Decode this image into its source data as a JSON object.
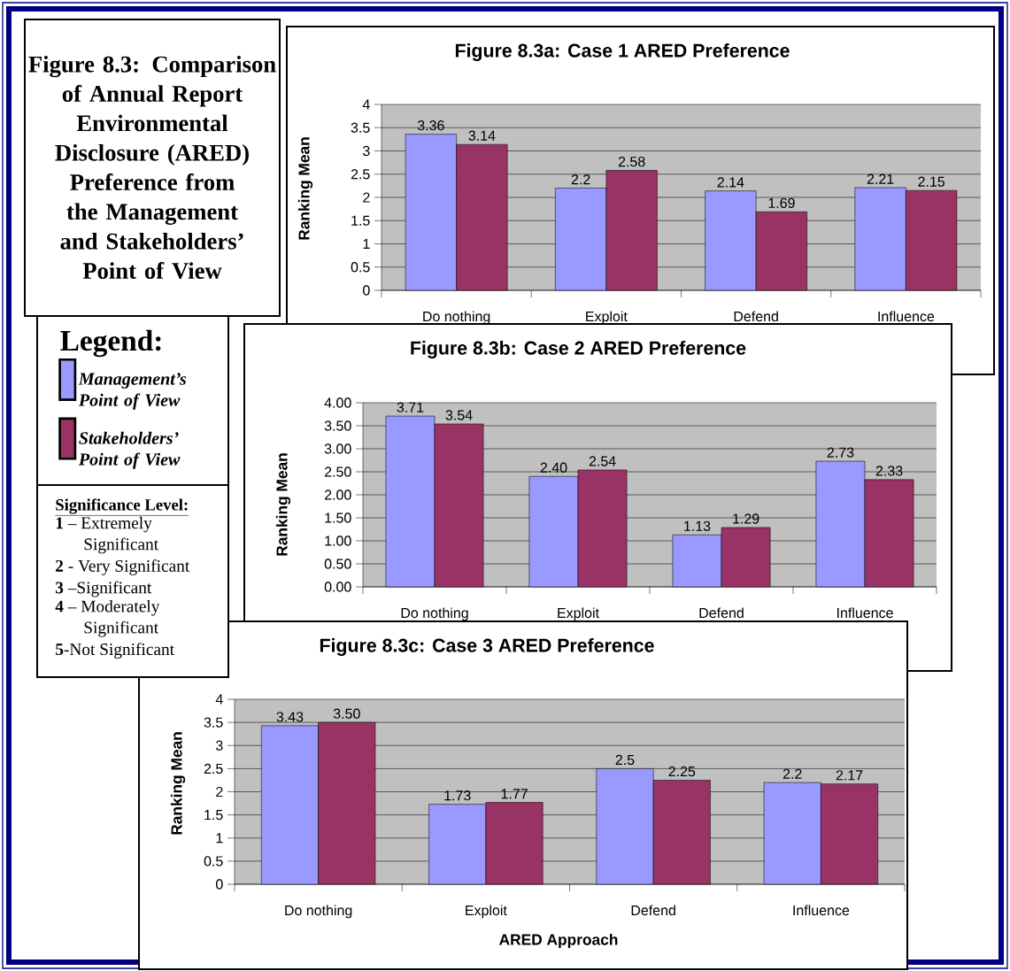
{
  "chart_data": [
    {
      "type": "other",
      "title": "Figure 8.3: Comparison of Annual Report Environmental Disclosure (ARED) Preference from the Management and Stakeholders’ Point of View",
      "subtitle": "Significance Level:",
      "annotations": [
        "**1** – Extremely Significant",
        "**2** - Very Significant",
        "**3** –Significant",
        "**4** – Moderately Significant",
        "**5**-Not Significant"
      ]
    },
    {
      "type": "bar",
      "title": "Figure 8.3a: Case 1 ARED Preference",
      "ylabel": "Ranking Mean",
      "legend_title": "Legend:",
      "legend": "left",
      "grid": "y",
      "data_labels": true,
      "categories": [
        "Do nothing",
        "Exploit",
        "Defend",
        "Influence"
      ],
      "ylim": [
        0,
        4
      ],
      "yticks": [
        0,
        0.5,
        1,
        1.5,
        2,
        2.5,
        3,
        3.5,
        4
      ],
      "series": [
        {
          "name": "Management’s Point of View",
          "color": "#9999ff",
          "values": [
            3.36,
            2.2,
            2.14,
            2.21
          ]
        },
        {
          "name": "Stakeholders’ Point of View",
          "color": "#993366",
          "values": [
            3.14,
            2.58,
            1.69,
            2.15
          ]
        }
      ]
    },
    {
      "type": "bar",
      "title": "Figure 8.3b: Case 2 ARED Preference",
      "ylabel": "Ranking Mean",
      "grid": "y",
      "categories": [
        "Do nothing",
        "Exploit",
        "Defend",
        "Influence"
      ],
      "ylim": [
        0,
        4
      ],
      "yticks": [
        {
          "value": 0,
          "label": "0.00"
        },
        {
          "value": 0.5,
          "label": "0.50"
        },
        {
          "value": 1,
          "label": "1.00"
        },
        {
          "value": 1.5,
          "label": "1.50"
        },
        {
          "value": 2,
          "label": "2.00"
        },
        {
          "value": 2.5,
          "label": "2.50"
        },
        {
          "value": 3,
          "label": "3.00"
        },
        {
          "value": 3.5,
          "label": "3.50"
        },
        {
          "value": 4,
          "label": "4.00"
        }
      ],
      "series": [
        {
          "color": "#9999ff",
          "values": [
            3.71,
            2.4,
            1.13,
            2.73
          ],
          "value_labels": [
            "3.71",
            "2.40",
            "1.13",
            "2.73"
          ]
        },
        {
          "color": "#993366",
          "values": [
            3.54,
            2.54,
            1.29,
            2.33
          ],
          "value_labels": [
            "3.54",
            "2.54",
            "1.29",
            "2.33"
          ]
        }
      ]
    },
    {
      "type": "bar",
      "title": "Figure 8.3c: Case 3 ARED Preference",
      "xlabel": "ARED Approach",
      "ylabel": "Ranking Mean",
      "grid": "y",
      "categories": [
        "Do nothing",
        "Exploit",
        "Defend",
        "Influence"
      ],
      "ylim": [
        0,
        4
      ],
      "yticks": [
        0,
        0.5,
        1,
        1.5,
        2,
        2.5,
        3,
        3.5,
        4
      ],
      "series": [
        {
          "color": "#9999ff",
          "values": [
            3.43,
            1.73,
            2.5,
            2.2
          ],
          "value_labels": [
            "3.43",
            "1.73",
            "2.5",
            "2.2"
          ]
        },
        {
          "color": "#993366",
          "values": [
            3.5,
            1.77,
            2.25,
            2.17
          ],
          "value_labels": [
            "3.50",
            "1.77",
            "2.25",
            "2.17"
          ]
        }
      ]
    }
  ]
}
